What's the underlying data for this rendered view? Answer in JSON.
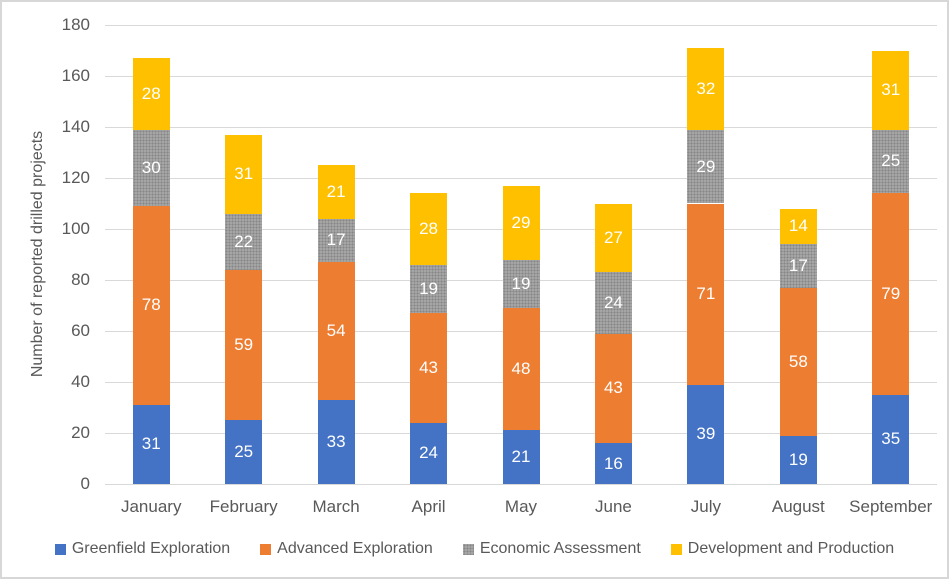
{
  "chart_data": {
    "type": "bar",
    "stacked": true,
    "title": "",
    "categories": [
      "January",
      "February",
      "March",
      "April",
      "May",
      "June",
      "July",
      "August",
      "September"
    ],
    "series": [
      {
        "name": "Greenfield Exploration",
        "color": "#4472c4",
        "pattern": false,
        "values": [
          31,
          25,
          33,
          24,
          21,
          16,
          39,
          19,
          35
        ]
      },
      {
        "name": "Advanced Exploration",
        "color": "#ed7d31",
        "pattern": false,
        "values": [
          78,
          59,
          54,
          43,
          48,
          43,
          71,
          58,
          79
        ]
      },
      {
        "name": "Economic Assessment",
        "color": "#a5a5a5",
        "pattern": true,
        "values": [
          30,
          22,
          17,
          19,
          19,
          24,
          29,
          17,
          25
        ]
      },
      {
        "name": "Development and Production",
        "color": "#ffc000",
        "pattern": false,
        "values": [
          28,
          31,
          21,
          28,
          29,
          27,
          32,
          14,
          31
        ]
      }
    ],
    "totals": [
      167,
      137,
      125,
      114,
      117,
      110,
      171,
      108,
      170
    ],
    "xlabel": "",
    "ylabel": "Number of reported drilled projects",
    "ylim": [
      0,
      180
    ],
    "ytick_step": 20,
    "grid": true,
    "legend_position": "bottom",
    "data_labels": true,
    "data_label_color": "#ffffff",
    "axis_text_color": "#595959",
    "gridline_color": "#d9d9d9"
  }
}
